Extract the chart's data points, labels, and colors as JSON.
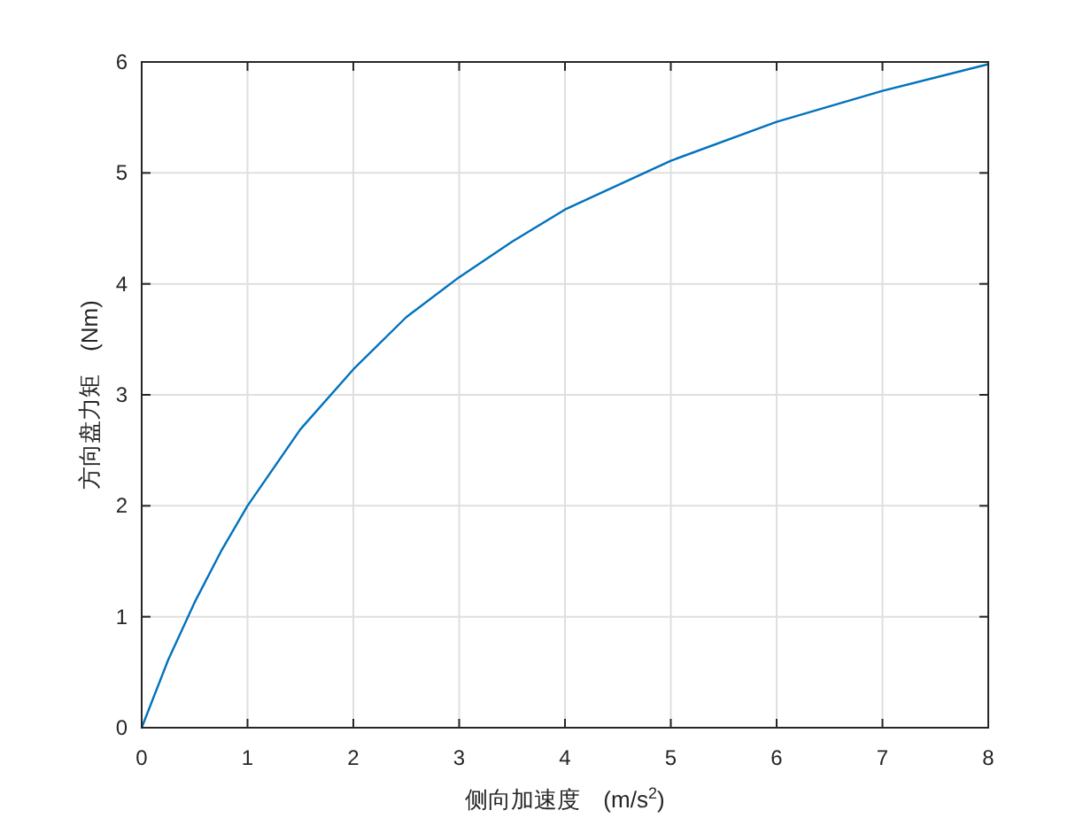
{
  "chart_data": {
    "type": "line",
    "xlabel": "侧向加速度　(m/s$^{2}$)",
    "ylabel": "方向盘力矩　(Nm)",
    "x": [
      0,
      0.25,
      0.5,
      0.75,
      1,
      1.5,
      2,
      2.5,
      3,
      3.5,
      4,
      5,
      6,
      7,
      8
    ],
    "values": [
      0,
      0.61,
      1.13,
      1.59,
      2.0,
      2.69,
      3.23,
      3.7,
      4.06,
      4.38,
      4.67,
      5.11,
      5.46,
      5.74,
      5.98
    ],
    "color": "#0072bd",
    "xlim": [
      0,
      8
    ],
    "ylim": [
      0,
      6
    ],
    "xticks": [
      0,
      1,
      2,
      3,
      4,
      5,
      6,
      7,
      8
    ],
    "yticks": [
      0,
      1,
      2,
      3,
      4,
      5,
      6
    ],
    "grid": true
  }
}
